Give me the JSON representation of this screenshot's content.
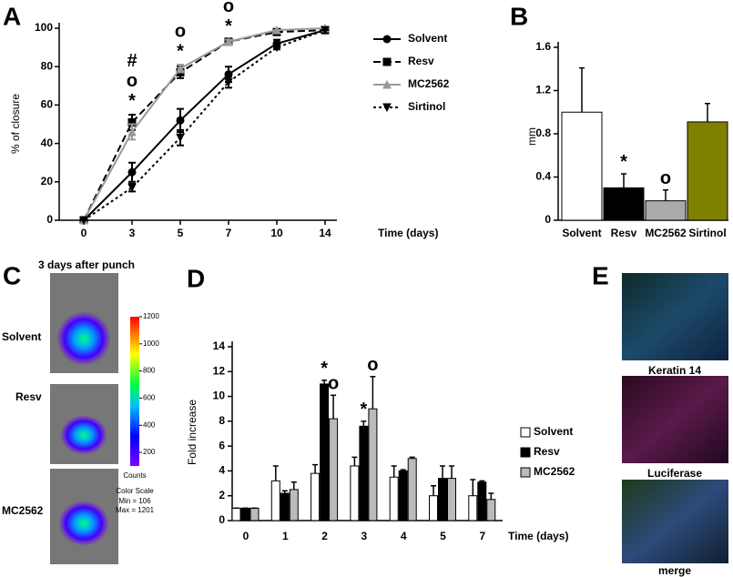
{
  "chart_data": [
    {
      "type": "line",
      "panel": "A",
      "xlabel": "Time (days)",
      "ylabel": "% of closure",
      "categories": [
        "0",
        "3",
        "5",
        "7",
        "10",
        "14"
      ],
      "ylim": [
        0,
        100
      ],
      "yticks": [
        0,
        20,
        40,
        60,
        80,
        100
      ],
      "series": [
        {
          "name": "Solvent",
          "color": "#000000",
          "dash": "none",
          "marker": "circle",
          "values": [
            0,
            25,
            52,
            76,
            92,
            99
          ],
          "errors": [
            0,
            5,
            6,
            4,
            2,
            0
          ]
        },
        {
          "name": "Resv",
          "color": "#000000",
          "dash": "8,4",
          "marker": "square",
          "values": [
            0,
            51,
            77,
            93,
            98,
            99
          ],
          "errors": [
            0,
            4,
            3,
            1,
            1,
            0
          ]
        },
        {
          "name": "MC2562",
          "color": "#999999",
          "dash": "none",
          "marker": "triangle",
          "values": [
            0,
            46,
            79,
            93,
            99,
            100
          ],
          "errors": [
            0,
            4,
            2,
            1,
            0,
            0
          ]
        },
        {
          "name": "Sirtinol",
          "color": "#000000",
          "dash": "3,3",
          "marker": "triangle-down",
          "values": [
            0,
            17,
            43,
            72,
            90,
            99
          ],
          "errors": [
            0,
            2,
            4,
            3,
            1,
            0
          ]
        }
      ],
      "annotations": [
        null,
        [
          "#",
          "o",
          "*"
        ],
        [
          "o",
          "*"
        ],
        [
          "o",
          "*"
        ],
        null,
        null
      ]
    },
    {
      "type": "bar",
      "panel": "B",
      "ylabel": "mm",
      "categories": [
        "Solvent",
        "Resv",
        "MC2562",
        "Sirtinol"
      ],
      "values": [
        1.0,
        0.3,
        0.18,
        0.91
      ],
      "errors": [
        0.41,
        0.13,
        0.1,
        0.17
      ],
      "colors": [
        "#ffffff",
        "#000000",
        "#aaaaaa",
        "#808000"
      ],
      "ylim": [
        0,
        1.6
      ],
      "yticks": [
        0,
        0.4,
        0.8,
        1.2,
        1.6
      ],
      "annotations": [
        null,
        "*",
        "o",
        null
      ]
    },
    {
      "type": "bar",
      "panel": "D",
      "xlabel": "Time (days)",
      "ylabel": "Fold increase",
      "categories": [
        "0",
        "1",
        "2",
        "3",
        "4",
        "5",
        "7"
      ],
      "ylim": [
        0,
        14
      ],
      "yticks": [
        0,
        2,
        4,
        6,
        8,
        10,
        12,
        14
      ],
      "series": [
        {
          "name": "Solvent",
          "color": "#ffffff",
          "values": [
            1,
            3.2,
            3.8,
            4.4,
            3.5,
            2.0,
            2.0
          ],
          "errors": [
            0,
            1.2,
            0.7,
            0.7,
            0.9,
            0.8,
            1.3
          ],
          "annotations": [
            null,
            null,
            null,
            null,
            null,
            null,
            null
          ]
        },
        {
          "name": "Resv",
          "color": "#000000",
          "values": [
            1,
            2.2,
            11.0,
            7.6,
            4.0,
            3.4,
            3.1
          ],
          "errors": [
            0,
            0.2,
            0.3,
            0.4,
            0.1,
            1.0,
            0.1
          ],
          "annotations": [
            null,
            null,
            "*",
            "*",
            null,
            null,
            null
          ]
        },
        {
          "name": "MC2562",
          "color": "#bbbbbb",
          "values": [
            1,
            2.5,
            8.2,
            9.0,
            5.0,
            3.4,
            1.7
          ],
          "errors": [
            0,
            0.6,
            1.9,
            2.6,
            0.1,
            1.0,
            0.5
          ],
          "annotations": [
            null,
            null,
            "o",
            "o",
            null,
            null,
            null
          ]
        }
      ]
    }
  ],
  "panel_c": {
    "panel": "C",
    "title": "3 days after punch",
    "rows": [
      "Solvent",
      "Resv",
      "MC2562"
    ],
    "colorbar": {
      "lim": [
        100,
        1200
      ],
      "ticks": [
        200,
        400,
        600,
        800,
        1000,
        1200
      ],
      "label": "Counts"
    },
    "notes": [
      "Color Scale",
      "Min = 106",
      "Max = 1201"
    ]
  },
  "panel_e": {
    "panel": "E",
    "images": [
      "Keratin 14",
      "Luciferase",
      "merge"
    ]
  }
}
